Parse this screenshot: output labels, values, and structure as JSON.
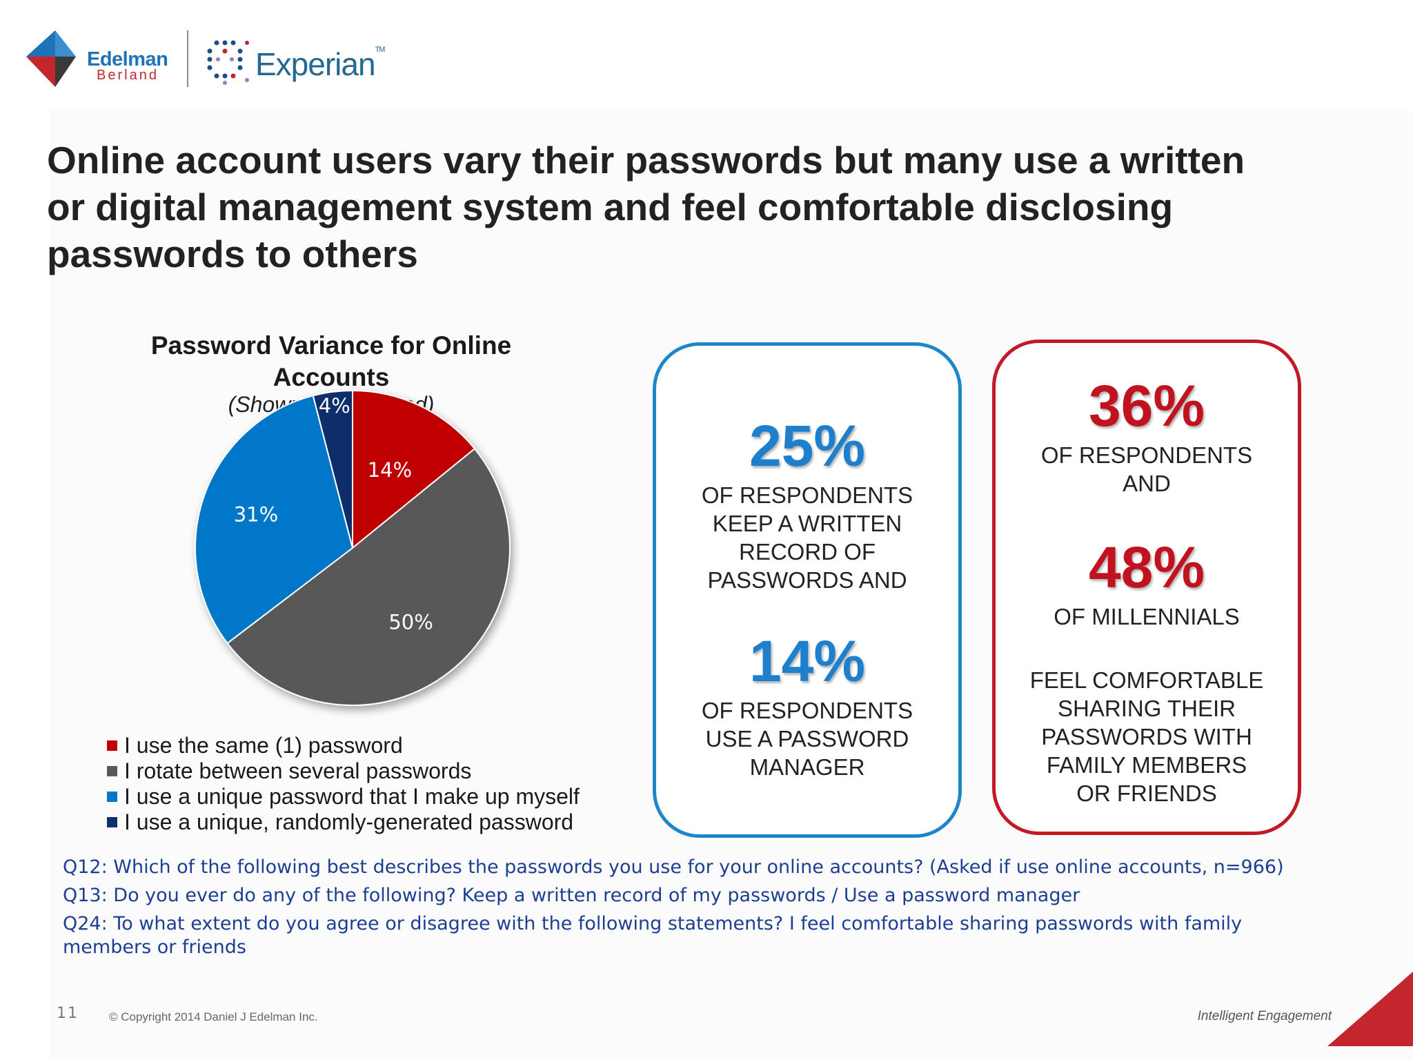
{
  "brand": {
    "edelman_name": "Edelman",
    "edelman_sub": "Berland",
    "experian_name": "Experian",
    "experian_tm": "TM",
    "accent_red": "#c4262e",
    "accent_blue": "#1e73b8"
  },
  "slide": {
    "title_lines": [
      "Online account users vary their passwords but many use a written",
      "or digital management system and feel comfortable disclosing",
      "passwords to others"
    ]
  },
  "chart_data": {
    "type": "pie",
    "title_lines": [
      "Password Variance for Online",
      "Accounts"
    ],
    "subtitle": "(Shown: % Selected)",
    "slices": [
      {
        "label": "I use the same (1) password",
        "value": 14,
        "display": "14%",
        "color": "#c00000",
        "label_color": "#ffffff"
      },
      {
        "label": "I rotate between several passwords",
        "value": 50,
        "display": "50%",
        "color": "#595959",
        "label_color": "#ffffff"
      },
      {
        "label": "I use a unique password that I make up myself",
        "value": 31,
        "display": "31%",
        "color": "#0077c8",
        "label_color": "#ffffff"
      },
      {
        "label": "I use a unique, randomly-generated password",
        "value": 4,
        "display": "4%",
        "color": "#0d2f6b",
        "label_color": "#ffffff"
      }
    ]
  },
  "box_blue": {
    "stat1": "25%",
    "text1": "OF RESPONDENTS\nKEEP A WRITTEN\nRECORD OF\nPASSWORDS AND",
    "stat2": "14%",
    "text2": "OF RESPONDENTS\nUSE A PASSWORD\nMANAGER"
  },
  "box_red": {
    "stat1": "36%",
    "text1": "OF RESPONDENTS\nAND",
    "stat2": "48%",
    "text2": "OF MILLENNIALS",
    "text3": "FEEL COMFORTABLE\nSHARING THEIR\nPASSWORDS WITH\nFAMILY MEMBERS\nOR  FRIENDS"
  },
  "questions": [
    "Q12: Which of the following best describes the passwords you use for  your online accounts? (Asked if use online accounts, n=966)",
    "Q13: Do you ever do any of the following? Keep a written record of my passwords / Use a password manager",
    "Q24: To what extent do you agree or disagree with the following statements? I feel comfortable sharing passwords with family members or friends"
  ],
  "footer": {
    "page_number": "11",
    "copyright": "© Copyright 2014 Daniel J Edelman Inc.",
    "tagline": "Intelligent Engagement"
  }
}
